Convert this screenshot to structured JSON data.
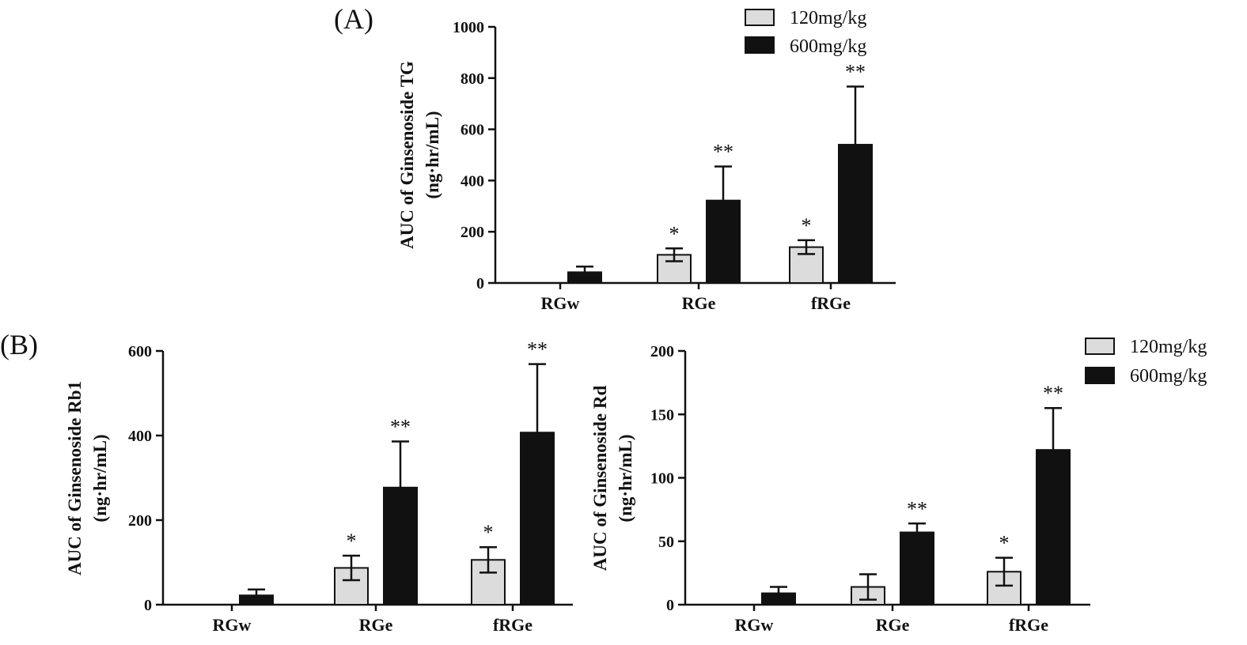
{
  "panel_labels": {
    "a": "(A)",
    "b": "(B)"
  },
  "legend": [
    {
      "label": "120mg/kg",
      "color": "#dcdcdc"
    },
    {
      "label": "600mg/kg",
      "color": "#111111"
    }
  ],
  "chart_data": [
    {
      "id": "tg",
      "type": "bar",
      "panel": "(A)",
      "categories": [
        "RGw",
        "RGe",
        "fRGe"
      ],
      "ylabel": "AUC of Ginsenoside TG",
      "ylabel2": "(ng·hr/mL)",
      "ylim": [
        0,
        1000
      ],
      "yticks": [
        0,
        200,
        400,
        600,
        800,
        1000
      ],
      "series": [
        {
          "name": "120mg/kg",
          "color": "#dcdcdc",
          "values": [
            0,
            110,
            140
          ],
          "errors": [
            0,
            25,
            27
          ],
          "sig": [
            "",
            "*",
            "*"
          ]
        },
        {
          "name": "600mg/kg",
          "color": "#111111",
          "values": [
            42,
            322,
            540
          ],
          "errors": [
            22,
            133,
            227
          ],
          "sig": [
            "",
            "**",
            "**"
          ]
        }
      ],
      "legend": "top-right",
      "grid": false
    },
    {
      "id": "rb1",
      "type": "bar",
      "panel": "(B)",
      "categories": [
        "RGw",
        "RGe",
        "fRGe"
      ],
      "ylabel": "AUC of Ginsenoside Rb1",
      "ylabel2": "(ng·hr/mL)",
      "ylim": [
        0,
        600
      ],
      "yticks": [
        0,
        200,
        400,
        600
      ],
      "series": [
        {
          "name": "120mg/kg",
          "color": "#dcdcdc",
          "values": [
            0,
            87,
            106
          ],
          "errors": [
            0,
            29,
            30
          ],
          "sig": [
            "",
            "*",
            "*"
          ]
        },
        {
          "name": "600mg/kg",
          "color": "#111111",
          "values": [
            22,
            277,
            407
          ],
          "errors": [
            14,
            109,
            162
          ],
          "sig": [
            "",
            "**",
            "**"
          ]
        }
      ],
      "grid": false
    },
    {
      "id": "rd",
      "type": "bar",
      "categories": [
        "RGw",
        "RGe",
        "fRGe"
      ],
      "ylabel": "AUC of Ginsenoside Rd",
      "ylabel2": "(ng·hr/mL)",
      "ylim": [
        0,
        200
      ],
      "yticks": [
        0,
        50,
        100,
        150,
        200
      ],
      "series": [
        {
          "name": "120mg/kg",
          "color": "#dcdcdc",
          "values": [
            0,
            14,
            26
          ],
          "errors": [
            0,
            10,
            11
          ],
          "sig": [
            "",
            "",
            "*"
          ]
        },
        {
          "name": "600mg/kg",
          "color": "#111111",
          "values": [
            9,
            57,
            122
          ],
          "errors": [
            5,
            7,
            33
          ],
          "sig": [
            "",
            "**",
            "**"
          ]
        }
      ],
      "legend": "top-right",
      "grid": false
    }
  ]
}
